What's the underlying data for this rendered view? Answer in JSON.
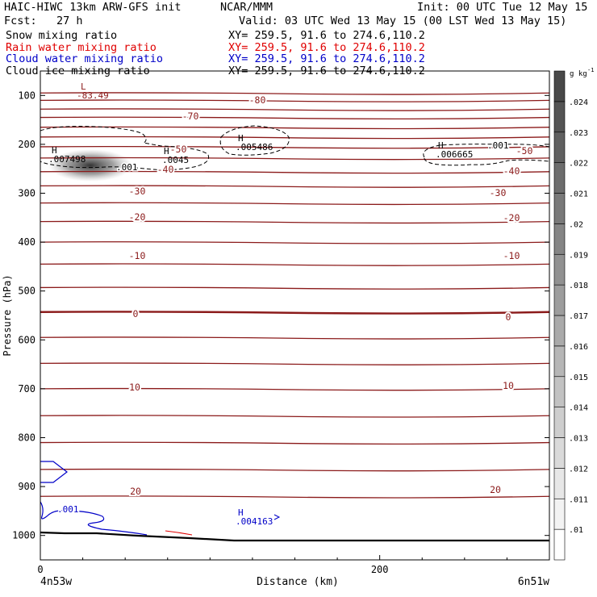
{
  "header": {
    "model": "HAIC-HIWC 13km ARW-GFS init",
    "org": "NCAR/MMM",
    "init": "Init: 00 UTC Tue 12 May 15",
    "fcst": "Fcst:   27 h",
    "valid": "Valid: 03 UTC Wed 13 May 15 (00 LST Wed 13 May 15)",
    "fields": [
      {
        "label": "Snow mixing ratio",
        "xy": "XY= 259.5, 91.6 to 274.6,110.2",
        "color": "#000000"
      },
      {
        "label": "Rain water mixing ratio",
        "xy": "XY= 259.5, 91.6 to 274.6,110.2",
        "color": "#e00000"
      },
      {
        "label": "Cloud water mixing ratio",
        "xy": "XY= 259.5, 91.6 to 274.6,110.2",
        "color": "#0000c8"
      },
      {
        "label": "Cloud ice mixing ratio",
        "xy": "XY= 259.5, 91.6 to 274.6,110.2",
        "color": "#000000"
      }
    ]
  },
  "chart_data": {
    "type": "cross-section",
    "ylabel": "Pressure (hPa)",
    "xlabel": "Distance (km)",
    "yticks": [
      100,
      200,
      300,
      400,
      500,
      600,
      700,
      800,
      900,
      1000
    ],
    "ylim": [
      1050,
      50
    ],
    "xticks": [
      0,
      200
    ],
    "xlim": [
      0,
      300
    ],
    "x_endpoints": {
      "left": "4n53w",
      "right": "6n51w"
    },
    "colorbar": {
      "unit": "g kg",
      "unit_exp": "-1",
      "levels": [
        ".01",
        ".011",
        ".012",
        ".013",
        ".014",
        ".015",
        ".016",
        ".017",
        ".018",
        ".019",
        ".02",
        ".021",
        ".022",
        ".023",
        ".024"
      ]
    },
    "temperature_labels": [
      "-80",
      "-70",
      "-50",
      "-40",
      "-30",
      "-20",
      "-10",
      "0",
      "10",
      "20",
      "-50",
      "-40",
      "-30",
      "-20",
      "-10",
      "0",
      "10",
      "20"
    ],
    "extrema": [
      {
        "type": "L",
        "value": "-83.49",
        "color": "#8b1a1a"
      },
      {
        "type": "H",
        "value": ".007498",
        "color": "#000000"
      },
      {
        "type": "H",
        "value": ".0045",
        "color": "#000000"
      },
      {
        "type": "H",
        "value": ".005486",
        "color": "#000000"
      },
      {
        "type": "H",
        "value": ".006665",
        "color": "#000000"
      },
      {
        "type": "H",
        "value": ".004163",
        "color": "#0000c8"
      }
    ],
    "contour_labels": [
      {
        "value": ".001",
        "color": "#000000"
      },
      {
        "value": ".001",
        "color": "#000000"
      },
      {
        "value": ".001",
        "color": "#0000c8"
      }
    ],
    "colors": {
      "temperature": "#8b1a1a",
      "ice": "#000000",
      "cloud_water": "#0000c8",
      "rain": "#e00000",
      "terrain": "#000000"
    }
  }
}
